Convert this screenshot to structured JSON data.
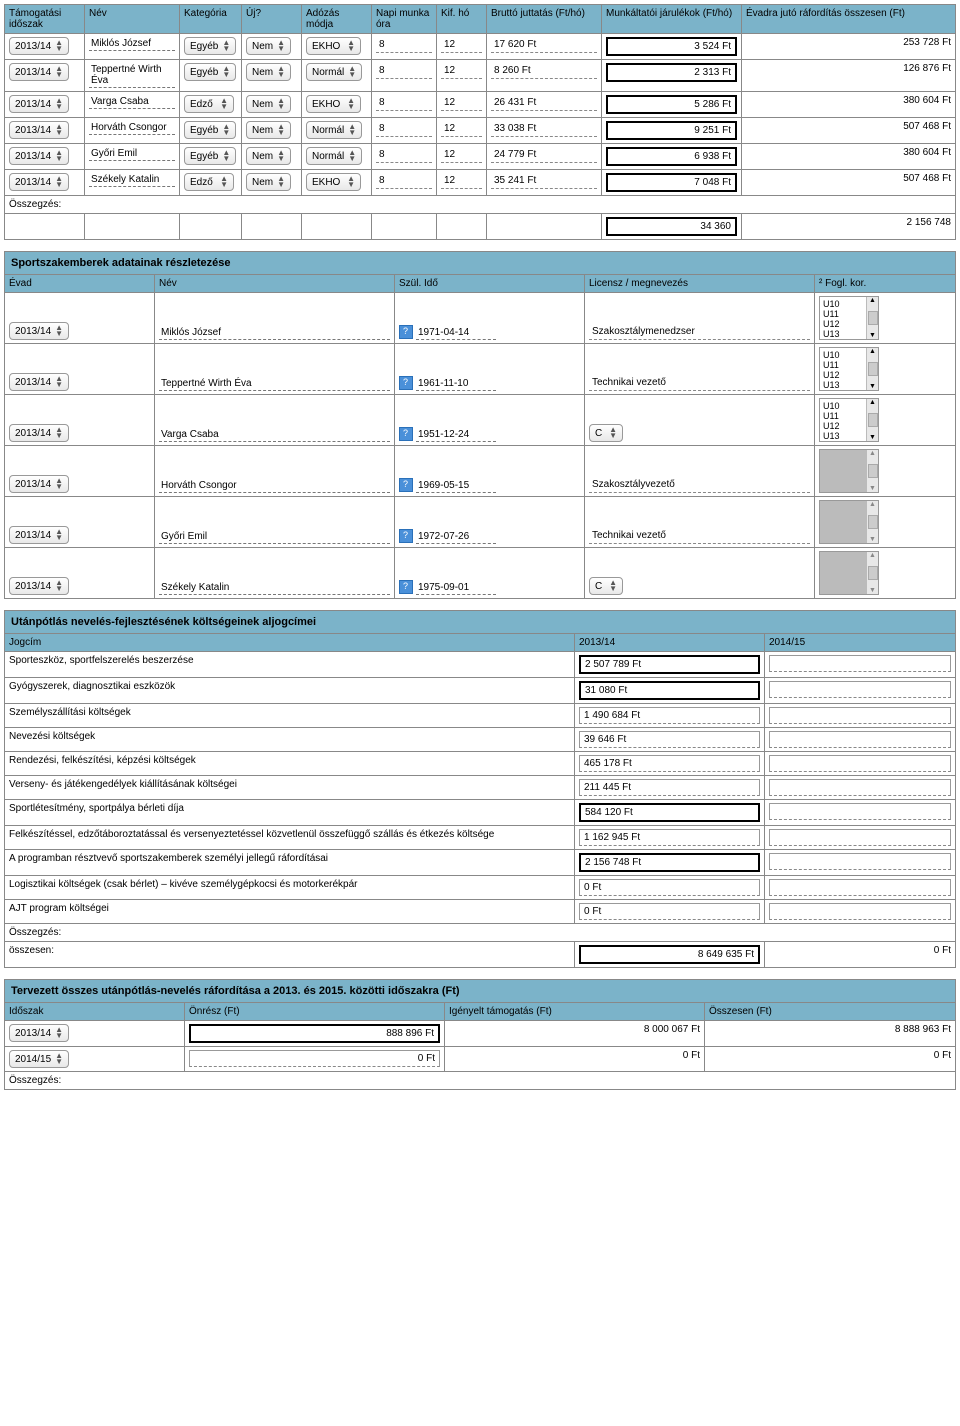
{
  "colors": {
    "header_bg": "#7bb3c9",
    "border": "#888888",
    "link_dash": "#777777"
  },
  "ages": [
    "U10",
    "U11",
    "U12",
    "U13"
  ],
  "table1": {
    "headers": [
      "Támogatási időszak",
      "Név",
      "Kategória",
      "Új?",
      "Adózás módja",
      "Napi munka óra",
      "Kif. hó",
      "Bruttó juttatás (Ft/hó)",
      "Munkáltatói járulékok (Ft/hó)",
      "Évadra jutó ráfordítás összesen (Ft)"
    ],
    "rows": [
      {
        "period": "2013/14",
        "name": "Miklós József",
        "cat": "Egyéb",
        "new": "Nem",
        "tax": "EKHO",
        "hours": "8",
        "months": "12",
        "gross": "17 620 Ft",
        "emp": "3 524  Ft",
        "total": "253 728  Ft"
      },
      {
        "period": "2013/14",
        "name": "Teppertné Wirth Éva",
        "cat": "Egyéb",
        "new": "Nem",
        "tax": "Normál",
        "hours": "8",
        "months": "12",
        "gross": "8 260 Ft",
        "emp": "2 313  Ft",
        "total": "126 876  Ft"
      },
      {
        "period": "2013/14",
        "name": "Varga Csaba",
        "cat": "Edző",
        "new": "Nem",
        "tax": "EKHO",
        "hours": "8",
        "months": "12",
        "gross": "26 431 Ft",
        "emp": "5 286  Ft",
        "total": "380 604  Ft"
      },
      {
        "period": "2013/14",
        "name": "Horváth Csongor",
        "cat": "Egyéb",
        "new": "Nem",
        "tax": "Normál",
        "hours": "8",
        "months": "12",
        "gross": "33 038 Ft",
        "emp": "9 251  Ft",
        "total": "507 468  Ft"
      },
      {
        "period": "2013/14",
        "name": "Győri Emil",
        "cat": "Egyéb",
        "new": "Nem",
        "tax": "Normál",
        "hours": "8",
        "months": "12",
        "gross": "24 779 Ft",
        "emp": "6 938  Ft",
        "total": "380 604  Ft"
      },
      {
        "period": "2013/14",
        "name": "Székely Katalin",
        "cat": "Edző",
        "new": "Nem",
        "tax": "EKHO",
        "hours": "8",
        "months": "12",
        "gross": "35 241 Ft",
        "emp": "7 048  Ft",
        "total": "507 468  Ft"
      }
    ],
    "sum_label": "Összegzés:",
    "sum_emp": "34 360",
    "sum_total": "2 156 748"
  },
  "details": {
    "title": "Sportszakemberek adatainak részletezése",
    "headers": [
      "Évad",
      "Név",
      "Szül. Idő",
      "Licensz / megnevezés",
      "² Fogl. kor."
    ],
    "rows": [
      {
        "period": "2013/14",
        "name": "Miklós József",
        "dob": "1971-04-14",
        "lic": "Szakosztálymenedzser",
        "list": true,
        "gray": false
      },
      {
        "period": "2013/14",
        "name": "Teppertné Wirth Éva",
        "dob": "1961-11-10",
        "lic": "Technikai vezető",
        "list": true,
        "gray": false
      },
      {
        "period": "2013/14",
        "name": "Varga Csaba",
        "dob": "1951-12-24",
        "lic_select": "C",
        "list": true,
        "gray": false
      },
      {
        "period": "2013/14",
        "name": "Horváth Csongor",
        "dob": "1969-05-15",
        "lic": "Szakosztályvezető",
        "list": true,
        "gray": true
      },
      {
        "period": "2013/14",
        "name": "Győri Emil",
        "dob": "1972-07-26",
        "lic": "Technikai vezető",
        "list": true,
        "gray": true
      },
      {
        "period": "2013/14",
        "name": "Székely Katalin",
        "dob": "1975-09-01",
        "lic_select": "C",
        "list": true,
        "gray": true
      }
    ]
  },
  "costs": {
    "title": "Utánpótlás nevelés-fejlesztésének költségeinek aljogcímei",
    "headers": [
      "Jogcím",
      "2013/14",
      "2014/15"
    ],
    "rows": [
      {
        "label": "Sporteszköz, sportfelszerelés beszerzése",
        "v1": "2 507 789  Ft",
        "strong": true
      },
      {
        "label": "Gyógyszerek, diagnosztikai eszközök",
        "v1": "31 080  Ft",
        "strong": true
      },
      {
        "label": "Személyszállítási költségek",
        "v1": "1 490 684 Ft",
        "strong": false
      },
      {
        "label": "Nevezési költségek",
        "v1": "39 646 Ft",
        "strong": false
      },
      {
        "label": "Rendezési, felkészítési, képzési költségek",
        "v1": "465 178 Ft",
        "strong": false
      },
      {
        "label": "Verseny- és játékengedélyek kiállításának költségei",
        "v1": "211 445 Ft",
        "strong": false
      },
      {
        "label": "Sportlétesítmény, sportpálya bérleti díja",
        "v1": "584 120  Ft",
        "strong": true
      },
      {
        "label": "Felkészítéssel, edzőtáboroztatással és versenyeztetéssel közvetlenül összefüggő szállás és étkezés költsége",
        "v1": "1 162 945 Ft",
        "strong": false
      },
      {
        "label": "A programban résztvevő sportszakemberek személyi jellegű ráfordításai",
        "v1": "2 156 748  Ft",
        "strong": true
      },
      {
        "label": "Logisztikai költségek (csak bérlet) – kivéve személygépkocsi és motorkerékpár",
        "v1": "0 Ft",
        "strong": false
      },
      {
        "label": "AJT program költségei",
        "v1": "0 Ft",
        "strong": false
      }
    ],
    "sum_label": "Összegzés:",
    "total_label": "összesen:",
    "total_v1": "8 649 635 Ft",
    "total_v2": "0 Ft"
  },
  "planned": {
    "title": "Tervezett összes utánpótlás-nevelés ráfordítása a 2013. és 2015. közötti időszakra (Ft)",
    "headers": [
      "Időszak",
      "Önrész (Ft)",
      "Igényelt támogatás (Ft)",
      "Összesen (Ft)"
    ],
    "rows": [
      {
        "period": "2013/14",
        "own": "888 896 Ft",
        "req": "8 000 067 Ft",
        "tot": "8 888 963 Ft",
        "strong": true
      },
      {
        "period": "2014/15",
        "own": "0 Ft",
        "req": "0 Ft",
        "tot": "0 Ft",
        "strong": false
      }
    ],
    "sum_label": "Összegzés:"
  }
}
